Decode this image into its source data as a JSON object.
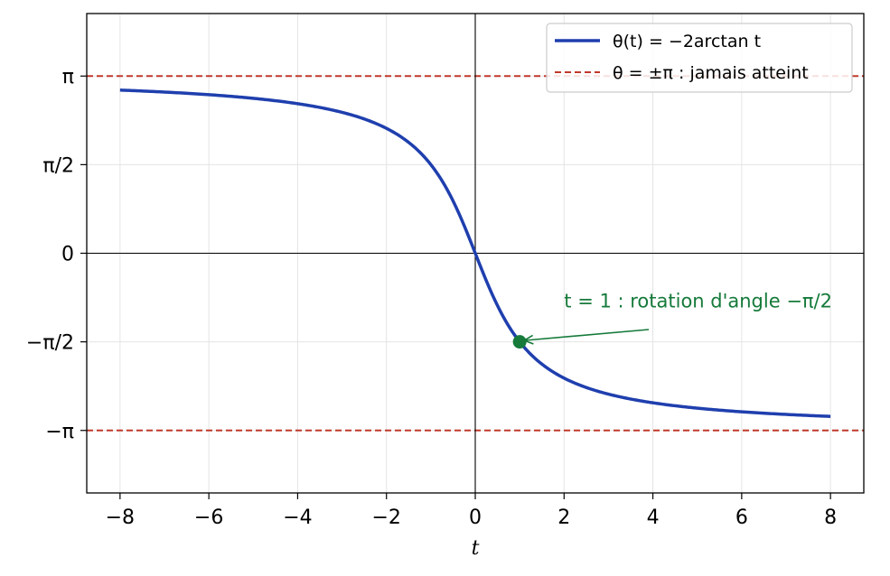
{
  "chart_data": {
    "type": "line",
    "title": "",
    "xlabel": "t",
    "ylabel": "",
    "xlim": [
      -8.75,
      8.75
    ],
    "ylim": [
      -4.25,
      4.25
    ],
    "grid": true,
    "legend_position": "top-right",
    "x_ticks": [
      {
        "value": -8,
        "label": "−8"
      },
      {
        "value": -6,
        "label": "−6"
      },
      {
        "value": -4,
        "label": "−4"
      },
      {
        "value": -2,
        "label": "−2"
      },
      {
        "value": 0,
        "label": "0"
      },
      {
        "value": 2,
        "label": "2"
      },
      {
        "value": 4,
        "label": "4"
      },
      {
        "value": 6,
        "label": "6"
      },
      {
        "value": 8,
        "label": "8"
      }
    ],
    "y_ticks": [
      {
        "value": 3.14159,
        "label": "π"
      },
      {
        "value": 1.5708,
        "label": "π/2"
      },
      {
        "value": 0,
        "label": "0"
      },
      {
        "value": -1.5708,
        "label": "−π/2"
      },
      {
        "value": -3.14159,
        "label": "−π"
      }
    ],
    "series": [
      {
        "name": "θ(t) = −2arctan t",
        "color": "#1f3fae",
        "function": "-2*atan(t)",
        "x_range": [
          -8,
          8
        ]
      }
    ],
    "reference_lines": [
      {
        "name": "θ = ±π : jamais atteint",
        "color": "#c0392b",
        "y_values": [
          3.14159,
          -3.14159
        ]
      }
    ],
    "annotations": [
      {
        "text": "t = 1 : rotation d'angle −π/2",
        "point": {
          "x": 1,
          "y": -1.5708
        },
        "text_at": {
          "x": 2,
          "y": -0.9
        },
        "color": "#157a3a"
      }
    ],
    "axis_lines": {
      "x0": 0,
      "y0": 0
    }
  }
}
